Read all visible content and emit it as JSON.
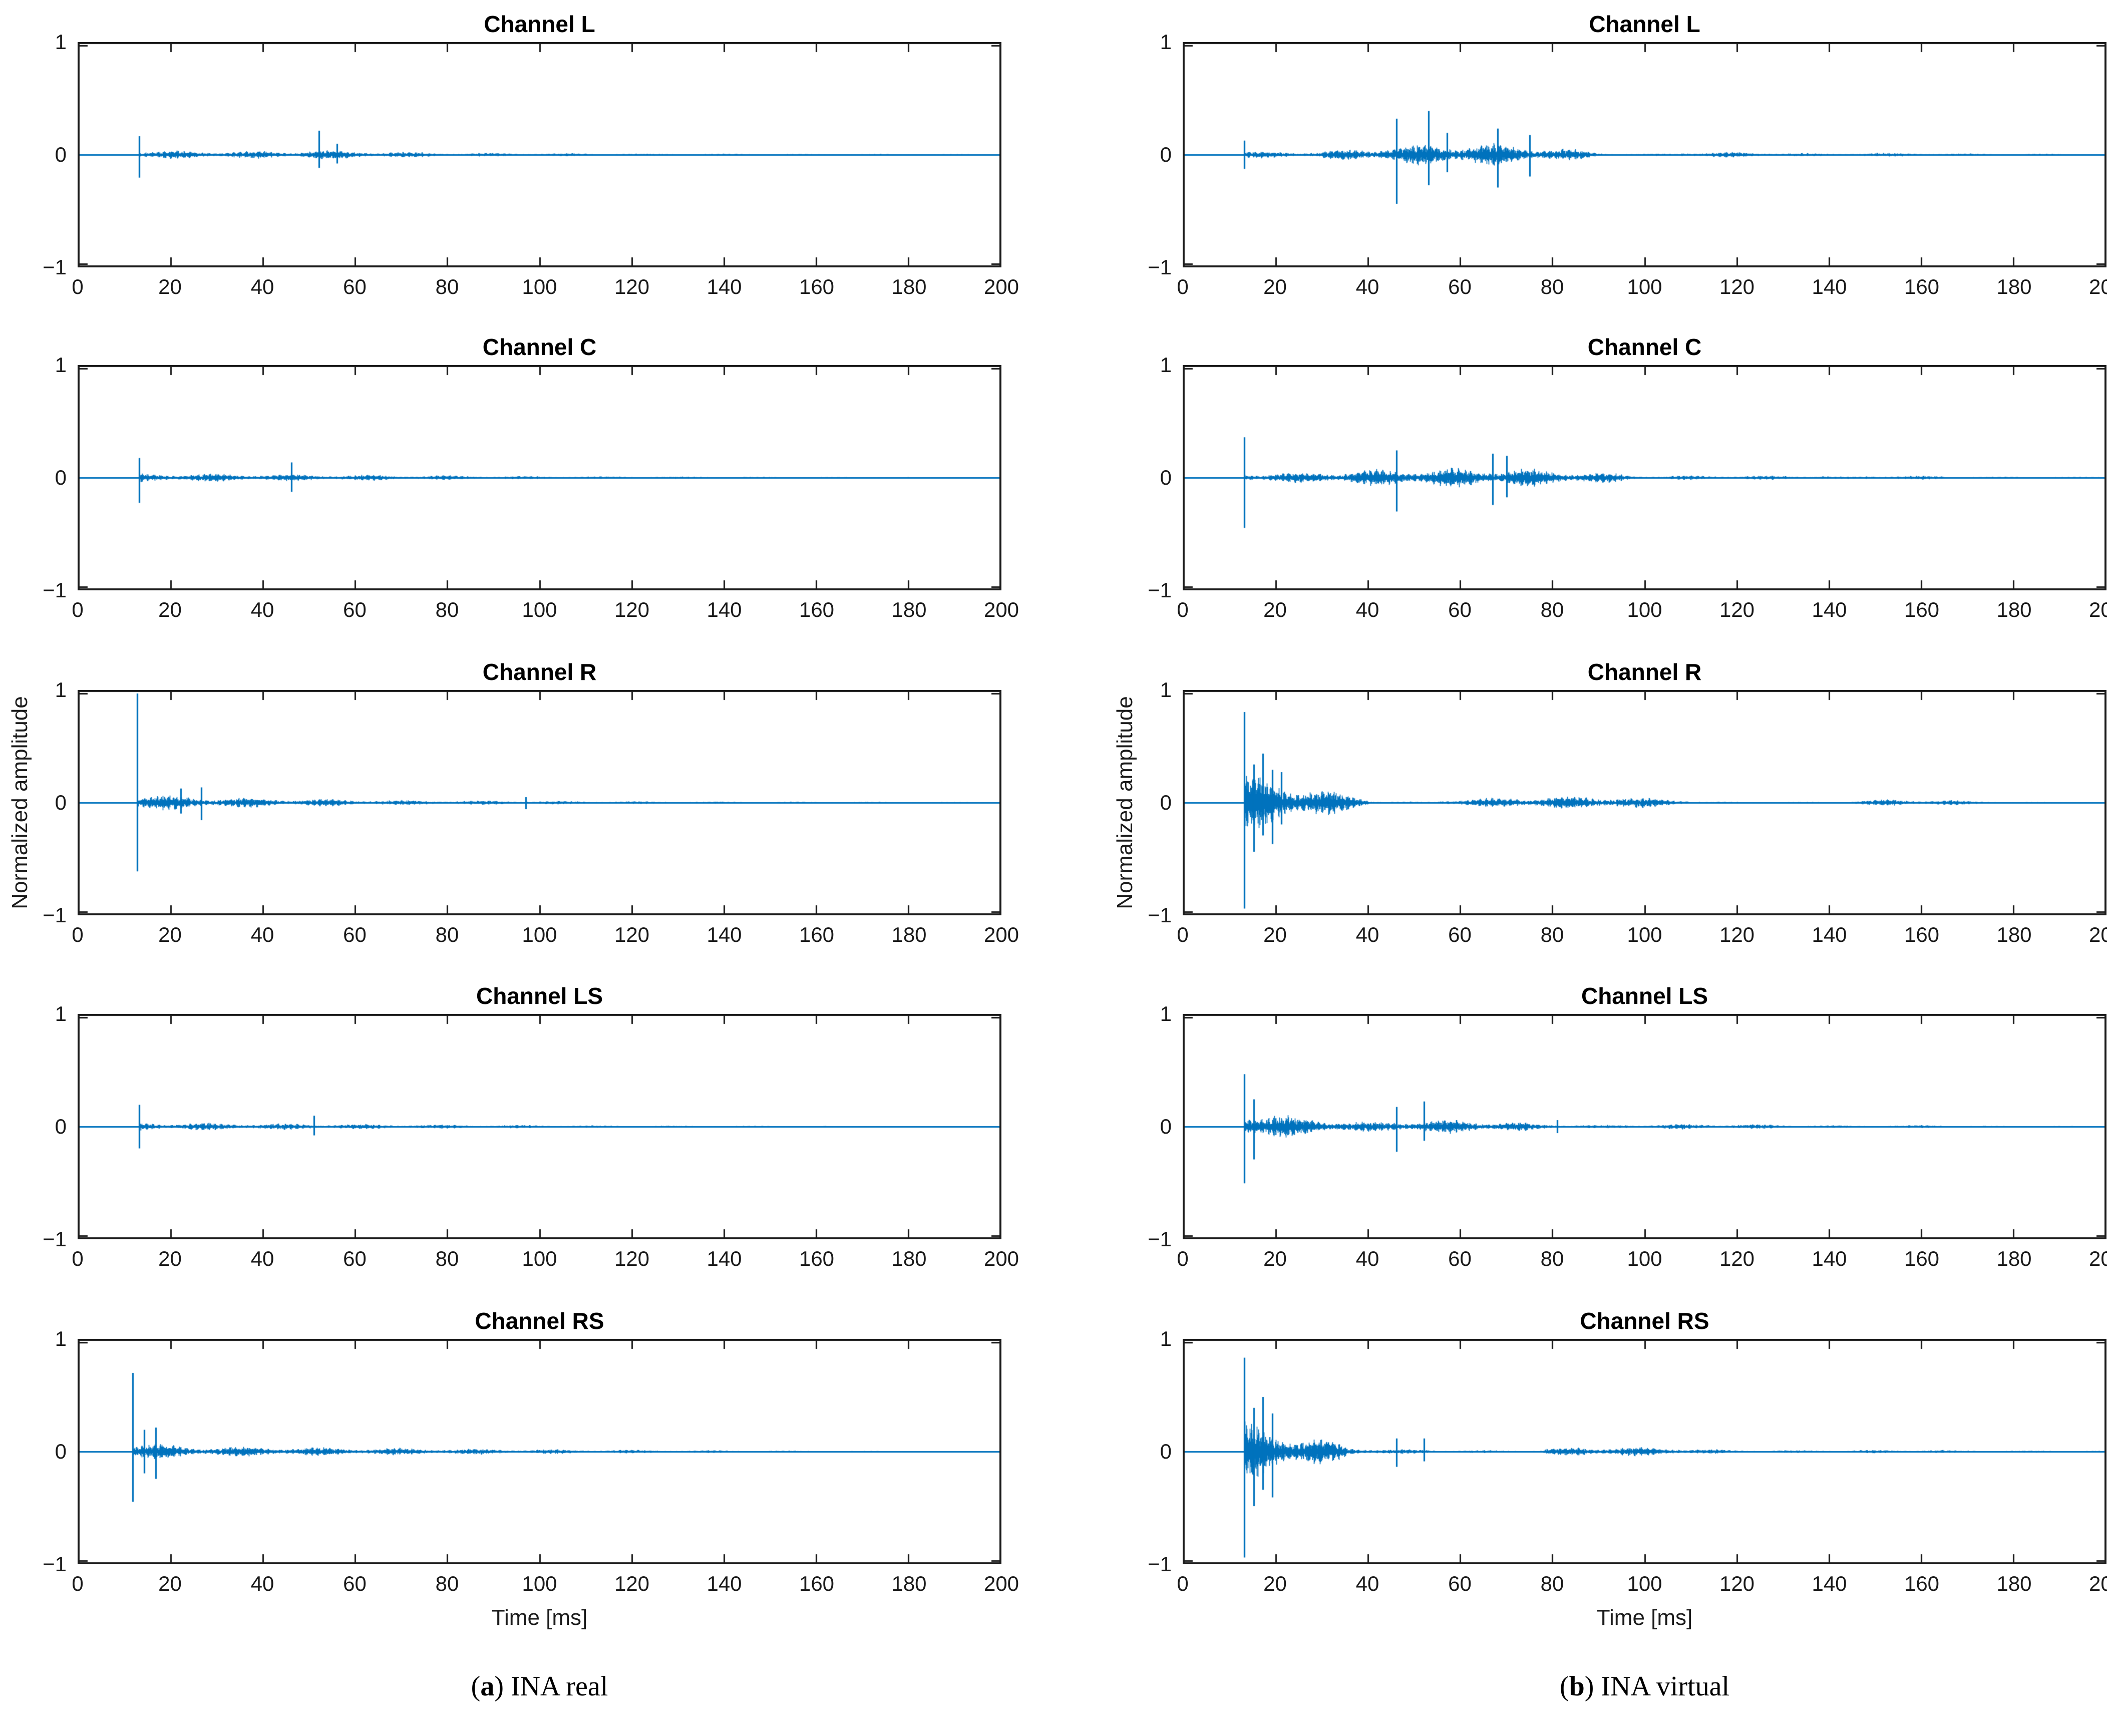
{
  "colors": {
    "line": "#0072BD",
    "axis": "#1a1a1a",
    "text": "#000000",
    "background": "#ffffff"
  },
  "axes": {
    "xlim": [
      0,
      200
    ],
    "ylim": [
      -1,
      1
    ],
    "x_ticks": [
      0,
      20,
      40,
      60,
      80,
      100,
      120,
      140,
      160,
      180,
      200
    ],
    "x_tick_labels": [
      "0",
      "20",
      "40",
      "60",
      "80",
      "100",
      "120",
      "140",
      "160",
      "180",
      "200"
    ],
    "y_ticks": [
      1,
      0,
      -1
    ],
    "y_tick_labels": [
      "1",
      "0",
      "−1"
    ],
    "x_label": "Time [ms]",
    "y_label": "Normalized amplitude",
    "grid": false,
    "box": true,
    "legend": null
  },
  "captions": {
    "a": {
      "open": "(",
      "letter": "a",
      "rest": ") INA real"
    },
    "b": {
      "open": "(",
      "letter": "b",
      "rest": ") INA virtual"
    }
  },
  "chart_data": [
    {
      "id": "a-L",
      "type": "line",
      "column": "a",
      "row": 0,
      "col": 0,
      "title": "Channel L",
      "x_unit": "ms",
      "onset_ms": 12.8,
      "spikes": [
        [
          13,
          0.17,
          0.21
        ],
        [
          52,
          0.22,
          0.12
        ],
        [
          56,
          0.1,
          0.08
        ]
      ],
      "envelope": [
        [
          13,
          16,
          0.05,
          0.04
        ],
        [
          16,
          48,
          0.04,
          0.035
        ],
        [
          48,
          58,
          0.05,
          0.045
        ],
        [
          58,
          80,
          0.04,
          0.02
        ],
        [
          80,
          120,
          0.02,
          0.012
        ],
        [
          120,
          200,
          0.012,
          0.006
        ]
      ]
    },
    {
      "id": "b-L",
      "type": "line",
      "column": "b",
      "row": 0,
      "col": 1,
      "title": "Channel L",
      "x_unit": "ms",
      "onset_ms": 12.8,
      "spikes": [
        [
          13,
          0.13,
          0.13
        ],
        [
          46,
          0.33,
          0.45
        ],
        [
          53,
          0.4,
          0.28
        ],
        [
          57,
          0.2,
          0.16
        ],
        [
          68,
          0.24,
          0.3
        ],
        [
          75,
          0.18,
          0.2
        ]
      ],
      "envelope": [
        [
          13,
          30,
          0.035,
          0.03
        ],
        [
          30,
          42,
          0.04,
          0.07
        ],
        [
          42,
          62,
          0.09,
          0.12
        ],
        [
          62,
          72,
          0.12,
          0.1
        ],
        [
          72,
          88,
          0.1,
          0.04
        ],
        [
          88,
          95,
          0.03,
          0.012
        ],
        [
          95,
          108,
          0.01,
          0.014
        ],
        [
          108,
          128,
          0.028,
          0.025
        ],
        [
          128,
          142,
          0.02,
          0.012
        ],
        [
          142,
          162,
          0.018,
          0.02
        ],
        [
          162,
          200,
          0.014,
          0.008
        ]
      ]
    },
    {
      "id": "a-C",
      "type": "line",
      "column": "a",
      "row": 1,
      "col": 0,
      "title": "Channel C",
      "x_unit": "ms",
      "onset_ms": 12.8,
      "spikes": [
        [
          13,
          0.18,
          0.23
        ],
        [
          46,
          0.14,
          0.13
        ]
      ],
      "envelope": [
        [
          13,
          30,
          0.045,
          0.04
        ],
        [
          30,
          60,
          0.04,
          0.03
        ],
        [
          60,
          100,
          0.03,
          0.015
        ],
        [
          100,
          160,
          0.015,
          0.008
        ],
        [
          160,
          200,
          0.008,
          0.005
        ]
      ]
    },
    {
      "id": "b-C",
      "type": "line",
      "column": "b",
      "row": 1,
      "col": 1,
      "title": "Channel C",
      "x_unit": "ms",
      "onset_ms": 12.8,
      "spikes": [
        [
          13,
          0.37,
          0.46
        ],
        [
          46,
          0.25,
          0.31
        ],
        [
          67,
          0.22,
          0.25
        ],
        [
          70,
          0.2,
          0.18
        ]
      ],
      "envelope": [
        [
          13,
          28,
          0.05,
          0.05
        ],
        [
          28,
          42,
          0.06,
          0.08
        ],
        [
          42,
          58,
          0.08,
          0.1
        ],
        [
          58,
          75,
          0.1,
          0.09
        ],
        [
          75,
          95,
          0.09,
          0.04
        ],
        [
          95,
          105,
          0.03,
          0.015
        ],
        [
          105,
          140,
          0.022,
          0.02
        ],
        [
          140,
          148,
          0.012,
          0.012
        ],
        [
          148,
          165,
          0.02,
          0.018
        ],
        [
          165,
          200,
          0.012,
          0.008
        ]
      ]
    },
    {
      "id": "a-R",
      "type": "line",
      "column": "a",
      "row": 2,
      "col": 0,
      "title": "Channel R",
      "x_unit": "ms",
      "onset_ms": 12.3,
      "spikes": [
        [
          12.5,
          1.0,
          0.63
        ],
        [
          22,
          0.13,
          0.1
        ],
        [
          26.5,
          0.14,
          0.16
        ],
        [
          97,
          0.05,
          0.06
        ]
      ],
      "envelope": [
        [
          12.5,
          20,
          0.09,
          0.07
        ],
        [
          20,
          35,
          0.07,
          0.05
        ],
        [
          35,
          70,
          0.05,
          0.025
        ],
        [
          70,
          130,
          0.025,
          0.012
        ],
        [
          130,
          200,
          0.012,
          0.006
        ]
      ]
    },
    {
      "id": "b-R",
      "type": "line",
      "column": "b",
      "row": 2,
      "col": 1,
      "title": "Channel R",
      "x_unit": "ms",
      "onset_ms": 12.8,
      "spikes": [
        [
          13,
          0.83,
          0.97
        ],
        [
          15,
          0.35,
          0.45
        ],
        [
          17,
          0.45,
          0.3
        ],
        [
          19,
          0.3,
          0.38
        ],
        [
          21,
          0.28,
          0.2
        ]
      ],
      "envelope": [
        [
          13,
          22,
          0.3,
          0.22
        ],
        [
          22,
          32,
          0.22,
          0.12
        ],
        [
          32,
          40,
          0.12,
          0.05
        ],
        [
          40,
          43,
          0.03,
          0.015
        ],
        [
          43,
          55,
          0.01,
          0.01
        ],
        [
          55,
          70,
          0.03,
          0.05
        ],
        [
          70,
          95,
          0.06,
          0.07
        ],
        [
          95,
          110,
          0.06,
          0.03
        ],
        [
          110,
          118,
          0.012,
          0.008
        ],
        [
          118,
          145,
          0.008,
          0.008
        ],
        [
          145,
          152,
          0.02,
          0.03
        ],
        [
          152,
          168,
          0.035,
          0.025
        ],
        [
          168,
          178,
          0.02,
          0.012
        ],
        [
          178,
          200,
          0.008,
          0.006
        ]
      ]
    },
    {
      "id": "a-LS",
      "type": "line",
      "column": "a",
      "row": 3,
      "col": 0,
      "title": "Channel LS",
      "x_unit": "ms",
      "onset_ms": 12.8,
      "spikes": [
        [
          13,
          0.2,
          0.2
        ],
        [
          51,
          0.1,
          0.08
        ]
      ],
      "envelope": [
        [
          13,
          20,
          0.045,
          0.04
        ],
        [
          20,
          60,
          0.04,
          0.025
        ],
        [
          60,
          120,
          0.025,
          0.01
        ],
        [
          120,
          200,
          0.01,
          0.004
        ]
      ]
    },
    {
      "id": "b-LS",
      "type": "line",
      "column": "b",
      "row": 3,
      "col": 1,
      "title": "Channel LS",
      "x_unit": "ms",
      "onset_ms": 12.8,
      "spikes": [
        [
          13,
          0.48,
          0.52
        ],
        [
          15,
          0.25,
          0.3
        ],
        [
          46,
          0.18,
          0.23
        ],
        [
          52,
          0.23,
          0.13
        ],
        [
          81,
          0.06,
          0.06
        ]
      ],
      "envelope": [
        [
          13,
          22,
          0.16,
          0.12
        ],
        [
          22,
          35,
          0.12,
          0.06
        ],
        [
          35,
          44,
          0.05,
          0.05
        ],
        [
          44,
          58,
          0.06,
          0.07
        ],
        [
          58,
          75,
          0.07,
          0.04
        ],
        [
          75,
          90,
          0.03,
          0.015
        ],
        [
          90,
          105,
          0.015,
          0.025
        ],
        [
          105,
          128,
          0.028,
          0.022
        ],
        [
          128,
          145,
          0.018,
          0.012
        ],
        [
          145,
          160,
          0.01,
          0.015
        ],
        [
          160,
          172,
          0.015,
          0.01
        ],
        [
          172,
          200,
          0.008,
          0.007
        ]
      ]
    },
    {
      "id": "a-RS",
      "type": "line",
      "column": "a",
      "row": 4,
      "col": 0,
      "title": "Channel RS",
      "x_unit": "ms",
      "onset_ms": 11.3,
      "spikes": [
        [
          11.5,
          0.72,
          0.46
        ],
        [
          14,
          0.2,
          0.2
        ],
        [
          16.5,
          0.22,
          0.25
        ]
      ],
      "envelope": [
        [
          11.5,
          22,
          0.1,
          0.06
        ],
        [
          22,
          60,
          0.055,
          0.04
        ],
        [
          60,
          110,
          0.04,
          0.02
        ],
        [
          110,
          160,
          0.02,
          0.008
        ],
        [
          160,
          200,
          0.008,
          0.004
        ]
      ]
    },
    {
      "id": "b-RS",
      "type": "line",
      "column": "b",
      "row": 4,
      "col": 1,
      "title": "Channel RS",
      "x_unit": "ms",
      "onset_ms": 12.8,
      "spikes": [
        [
          13,
          0.86,
          0.97
        ],
        [
          15,
          0.4,
          0.5
        ],
        [
          17,
          0.5,
          0.35
        ],
        [
          19,
          0.35,
          0.42
        ],
        [
          46,
          0.12,
          0.14
        ],
        [
          52,
          0.12,
          0.09
        ]
      ],
      "envelope": [
        [
          13,
          22,
          0.3,
          0.22
        ],
        [
          22,
          35,
          0.2,
          0.08
        ],
        [
          35,
          42,
          0.05,
          0.03
        ],
        [
          42,
          55,
          0.025,
          0.02
        ],
        [
          55,
          78,
          0.015,
          0.012
        ],
        [
          78,
          85,
          0.03,
          0.04
        ],
        [
          85,
          108,
          0.05,
          0.04
        ],
        [
          108,
          118,
          0.03,
          0.02
        ],
        [
          118,
          145,
          0.015,
          0.012
        ],
        [
          145,
          165,
          0.015,
          0.018
        ],
        [
          165,
          200,
          0.012,
          0.01
        ]
      ]
    }
  ]
}
